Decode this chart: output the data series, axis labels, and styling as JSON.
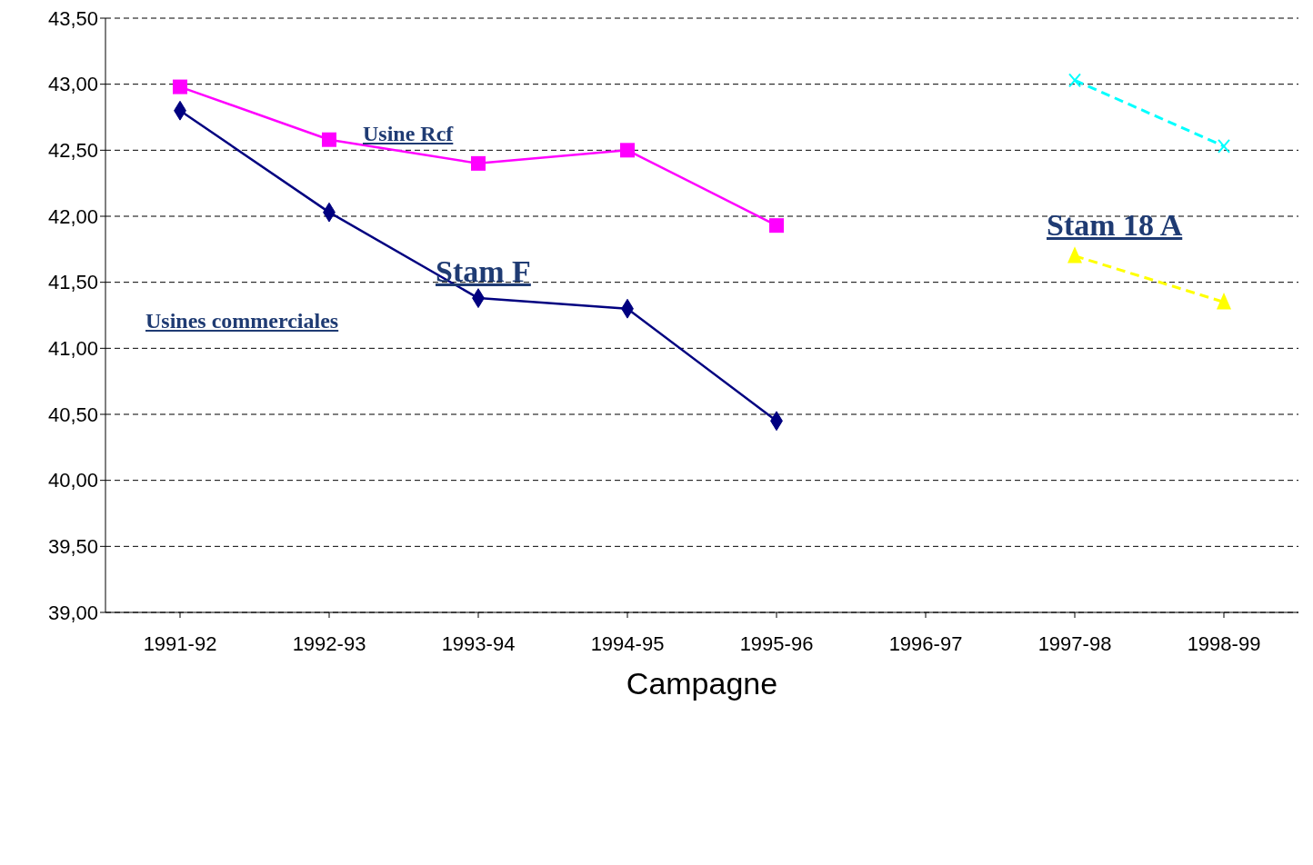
{
  "chart_data": {
    "type": "line",
    "xlabel": "Campagne",
    "categories": [
      "1991-92",
      "1992-93",
      "1993-94",
      "1994-95",
      "1995-96",
      "1996-97",
      "1997-98",
      "1998-99"
    ],
    "series": [
      {
        "color": "#000080",
        "marker": "diamond",
        "line_style": "solid",
        "values": [
          42.8,
          42.03,
          41.38,
          41.3,
          40.45,
          null,
          null,
          null
        ]
      },
      {
        "color": "#ff00ff",
        "marker": "square",
        "line_style": "solid",
        "values": [
          42.98,
          42.58,
          42.4,
          42.5,
          41.93,
          null,
          null,
          null
        ]
      },
      {
        "color": "#00ffff",
        "marker": "cross",
        "line_style": "dashed",
        "values": [
          null,
          null,
          null,
          null,
          null,
          null,
          43.03,
          42.53
        ]
      },
      {
        "color": "#ffff00",
        "marker": "triangle",
        "line_style": "dashed",
        "values": [
          null,
          null,
          null,
          null,
          null,
          null,
          41.7,
          41.35
        ]
      }
    ],
    "ylim": [
      39,
      43.5
    ],
    "yticks": [
      {
        "value": 39,
        "label": "39,00"
      },
      {
        "value": 39.5,
        "label": "39,50"
      },
      {
        "value": 40,
        "label": "40,00"
      },
      {
        "value": 40.5,
        "label": "40,50"
      },
      {
        "value": 41,
        "label": "41,00"
      },
      {
        "value": 41.5,
        "label": "41,50"
      },
      {
        "value": 42,
        "label": "42,00"
      },
      {
        "value": 42.5,
        "label": "42,50"
      },
      {
        "value": 43,
        "label": "43,00"
      },
      {
        "value": 43.5,
        "label": "43,50"
      }
    ],
    "grid": "y",
    "annotations": [
      "Usine Rcf",
      "Stam F",
      "Usines commerciales",
      "Stam 18 A"
    ]
  }
}
